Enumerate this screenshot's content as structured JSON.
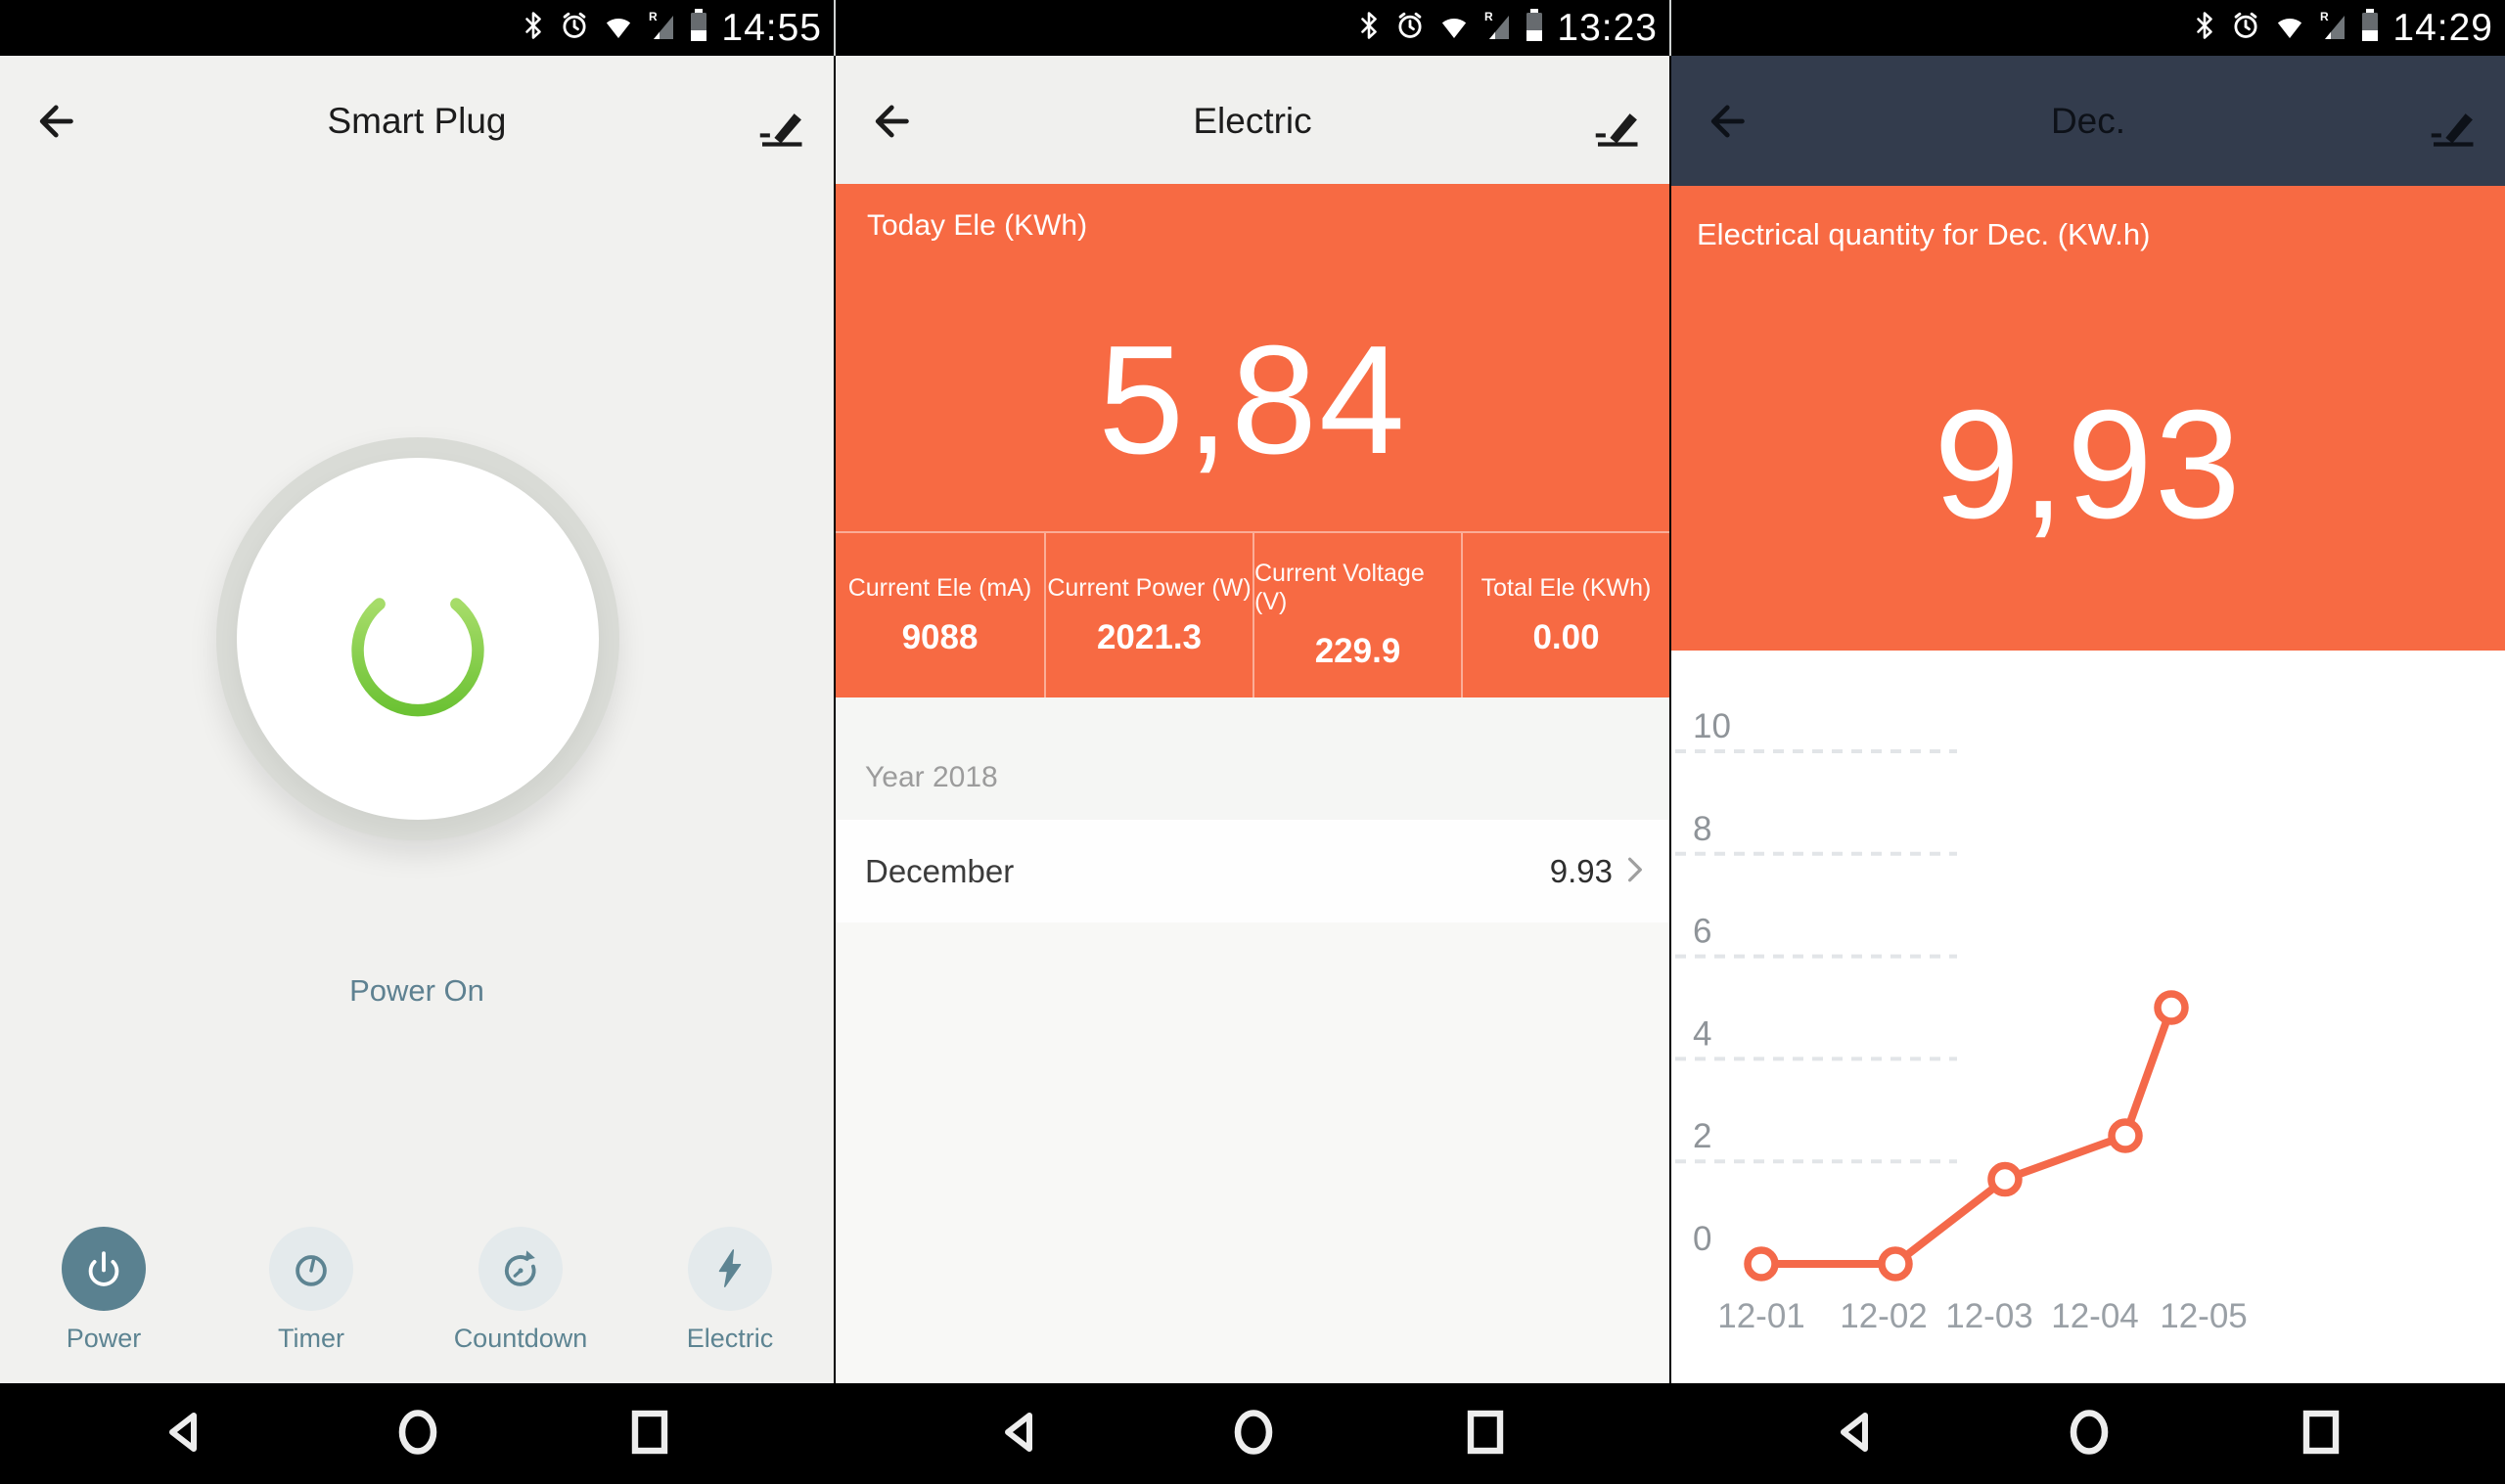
{
  "status_bar": {
    "icons": [
      "bluetooth-icon",
      "alarm-clock-icon",
      "wifi-icon",
      "cell-signal-roaming-icon",
      "battery-icon"
    ],
    "roaming_indicator": "R",
    "times": {
      "power_screen": "14:55",
      "electric_screen": "13:23",
      "month_screen": "14:29"
    }
  },
  "power_screen": {
    "title": "Smart Plug",
    "power_state": "Power On",
    "tabs": [
      {
        "label": "Power",
        "active": true
      },
      {
        "label": "Timer",
        "active": false
      },
      {
        "label": "Countdown",
        "active": false
      },
      {
        "label": "Electric",
        "active": false
      }
    ]
  },
  "electric_screen": {
    "title": "Electric",
    "today_label": "Today Ele (KWh)",
    "today_value": "5,84",
    "stats": [
      {
        "label": "Current Ele (mA)",
        "value": "9088"
      },
      {
        "label": "Current Power (W)",
        "value": "2021.3"
      },
      {
        "label": "Current Voltage (V)",
        "value": "229.9"
      },
      {
        "label": "Total Ele (KWh)",
        "value": "0.00"
      }
    ],
    "year_label": "Year 2018",
    "month": "December",
    "month_value": "9.93"
  },
  "month_screen": {
    "title": "Dec.",
    "panel_label": "Electrical quantity for Dec. (KW.h)",
    "panel_value": "9,93"
  },
  "chart_data": {
    "type": "line",
    "title": "Electrical quantity for Dec. (KW.h)",
    "categories": [
      "12-01",
      "12-02",
      "12-03",
      "12-04",
      "12-05"
    ],
    "values": [
      0,
      0,
      1.65,
      2.5,
      5.0
    ],
    "xlabel": "",
    "ylabel": "KW.h",
    "ylim": [
      0,
      10
    ],
    "y_ticks": [
      0,
      2,
      4,
      6,
      8,
      10
    ],
    "grid": "horizontal dashed, short segments at left only",
    "legend": "none",
    "line_color": "#F4694A",
    "marker": "open-circle"
  },
  "colors": {
    "accent_orange": "#F76A43",
    "slate_teal": "#5D8492",
    "power_green": "#7DC93F",
    "dark_header": "#333C4D",
    "chart_line": "#F4694A",
    "status_bar": "#000000"
  }
}
